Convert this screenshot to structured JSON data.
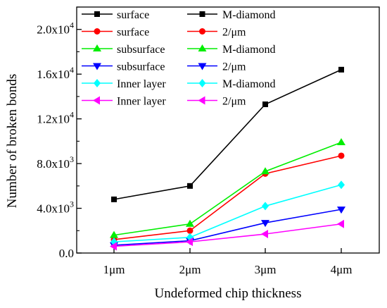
{
  "chart_data": {
    "type": "line",
    "xlabel": "Undeformed chip thickness",
    "ylabel": "Number of broken bonds",
    "categories": [
      "1μm",
      "2μm",
      "3μm",
      "4μm"
    ],
    "ylim": [
      0,
      22000
    ],
    "yticks": [
      {
        "value": 0,
        "mantissa": "0.0",
        "exp": ""
      },
      {
        "value": 4000,
        "mantissa": "4.0x10",
        "exp": "3"
      },
      {
        "value": 8000,
        "mantissa": "8.0x10",
        "exp": "3"
      },
      {
        "value": 12000,
        "mantissa": "1.2x10",
        "exp": "4"
      },
      {
        "value": 16000,
        "mantissa": "1.6x10",
        "exp": "4"
      },
      {
        "value": 20000,
        "mantissa": "2.0x10",
        "exp": "4"
      }
    ],
    "legend_placement": "top-left, two columns",
    "series": [
      {
        "name": "surface M-diamond",
        "col1": "surface",
        "col2": "M-diamond",
        "color": "#000000",
        "marker": "square",
        "values": [
          4800,
          6000,
          13300,
          16400
        ]
      },
      {
        "name": "surface 2/μm",
        "col1": "surface",
        "col2": "2/μm",
        "color": "#ff0000",
        "marker": "circle",
        "values": [
          1200,
          2000,
          7100,
          8700
        ]
      },
      {
        "name": "subsurface M-diamond",
        "col1": "subsurface",
        "col2": "M-diamond",
        "color": "#00ee00",
        "marker": "triangle-up",
        "values": [
          1600,
          2600,
          7300,
          9900
        ]
      },
      {
        "name": "subsurface 2/μm",
        "col1": "subsurface",
        "col2": "2/μm",
        "color": "#0000ff",
        "marker": "triangle-down",
        "values": [
          700,
          1100,
          2700,
          3900
        ]
      },
      {
        "name": "Inner layer M-diamond",
        "col1": "Inner layer",
        "col2": "M-diamond",
        "color": "#00ffff",
        "marker": "diamond",
        "values": [
          1000,
          1400,
          4200,
          6100
        ]
      },
      {
        "name": "Inner layer 2/μm",
        "col1": "Inner layer",
        "col2": "2/μm",
        "color": "#ff00ff",
        "marker": "triangle-left",
        "values": [
          600,
          1000,
          1700,
          2600
        ]
      }
    ]
  }
}
